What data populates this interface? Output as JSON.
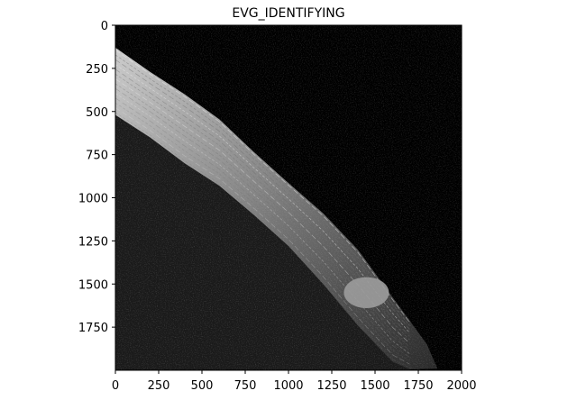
{
  "chart_data": {
    "type": "heatmap",
    "title": "EVG_IDENTIFYING",
    "xlabel": "",
    "ylabel": "",
    "xlim": [
      0,
      2000
    ],
    "ylim": [
      2000,
      0
    ],
    "x_ticks": [
      0,
      250,
      500,
      750,
      1000,
      1250,
      1500,
      1750,
      2000
    ],
    "y_ticks": [
      0,
      250,
      500,
      750,
      1000,
      1250,
      1500,
      1750
    ],
    "colormap": "gray",
    "grid": false,
    "legend": "none",
    "background_color": "#000000",
    "content": {
      "upper_right_region": "black",
      "diagonal_band": {
        "upper_edge": [
          [
            0,
            130
          ],
          [
            200,
            270
          ],
          [
            400,
            400
          ],
          [
            600,
            545
          ],
          [
            800,
            735
          ],
          [
            1000,
            915
          ],
          [
            1200,
            1090
          ],
          [
            1400,
            1300
          ],
          [
            1600,
            1575
          ],
          [
            1800,
            1850
          ],
          [
            1860,
            1990
          ]
        ],
        "lower_edge": [
          [
            0,
            520
          ],
          [
            200,
            650
          ],
          [
            400,
            800
          ],
          [
            600,
            930
          ],
          [
            800,
            1100
          ],
          [
            1000,
            1280
          ],
          [
            1200,
            1500
          ],
          [
            1400,
            1740
          ],
          [
            1600,
            1950
          ],
          [
            1700,
            1995
          ]
        ]
      },
      "bright_blob_center": [
        1450,
        1550
      ]
    }
  }
}
